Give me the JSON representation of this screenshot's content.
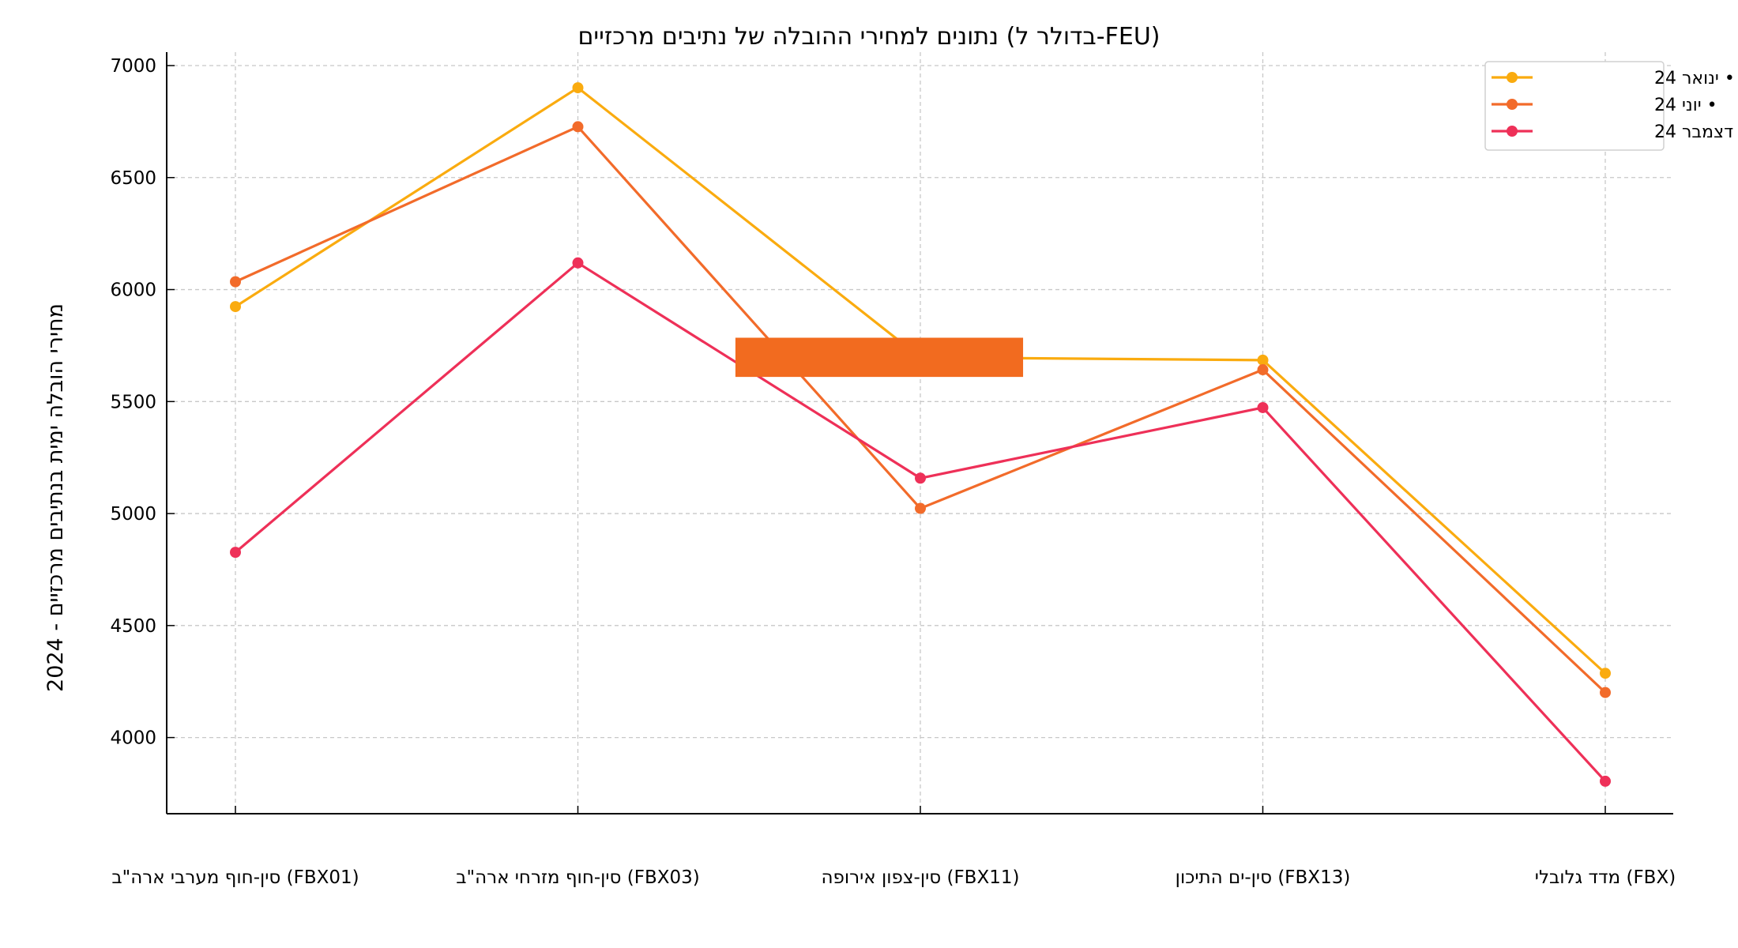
{
  "chart_data": {
    "type": "line",
    "title": "נתונים למחירי ההובלה של נתיבים מרכזיים (בדולר ל-FEU)",
    "xlabel": "",
    "ylabel": "מחירי הובלה ימית בנתיבים מרכזיים - 2024",
    "categories": [
      "סין-חוף מערבי ארה\"ב (FBX01)",
      "סין-חוף מזרחי ארה\"ב (FBX03)",
      "סין-צפון אירופה (FBX11)",
      "סין-ים התיכון (FBX13)",
      "מדד גלובלי (FBX)"
    ],
    "yticks": [
      4000,
      4500,
      5000,
      5500,
      6000,
      6500,
      7000
    ],
    "ylim": [
      3660,
      7060
    ],
    "grid": true,
    "legend_position": "top-right",
    "series": [
      {
        "name": "ינואר 24",
        "legend_label": "• ינואר 24",
        "color": "#FAAB0F",
        "values": [
          5924,
          6901,
          5697,
          5685,
          4287
        ]
      },
      {
        "name": "יוני 24",
        "legend_label": "• יוני 24",
        "color": "#F26B2A",
        "values": [
          6035,
          6727,
          5023,
          5642,
          4201
        ]
      },
      {
        "name": "דצמבר 24",
        "legend_label": "• דצמבר 24",
        "color": "#EE3058",
        "values": [
          4827,
          6119,
          5158,
          5473,
          3805
        ]
      }
    ],
    "annotations": [
      {
        "kind": "rectangle",
        "color": "#F26B1F",
        "x_from_category": 1.46,
        "x_to_category": 2.3,
        "y_low": 5610,
        "y_high": 5785
      }
    ]
  }
}
